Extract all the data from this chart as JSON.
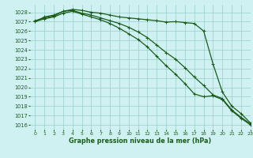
{
  "title": "Graphe pression niveau de la mer (hPa)",
  "bg_color": "#cff1f1",
  "grid_color": "#99cccc",
  "line_color": "#1a5c1a",
  "marker_color": "#1a5c1a",
  "xlim": [
    -0.5,
    23
  ],
  "ylim": [
    1015.5,
    1028.8
  ],
  "xticks": [
    0,
    1,
    2,
    3,
    4,
    5,
    6,
    7,
    8,
    9,
    10,
    11,
    12,
    13,
    14,
    15,
    16,
    17,
    18,
    19,
    20,
    21,
    22,
    23
  ],
  "yticks": [
    1016,
    1017,
    1018,
    1019,
    1020,
    1021,
    1022,
    1023,
    1024,
    1025,
    1026,
    1027,
    1028
  ],
  "series": [
    {
      "y": [
        1027.0,
        1027.5,
        1027.7,
        1028.1,
        1028.3,
        1028.2,
        1028.0,
        1027.9,
        1027.7,
        1027.5,
        1027.4,
        1027.3,
        1027.2,
        1027.1,
        1026.95,
        1027.0,
        1026.9,
        1026.8,
        1026.0,
        1022.5,
        1019.5,
        1018.0,
        1017.2,
        1016.2
      ],
      "has_marker": true,
      "lw": 0.9
    },
    {
      "y": [
        1027.1,
        1027.4,
        1027.6,
        1028.1,
        1028.2,
        1027.9,
        1027.7,
        1027.4,
        1027.1,
        1026.8,
        1026.4,
        1025.9,
        1025.3,
        1024.5,
        1023.7,
        1023.0,
        1022.1,
        1021.1,
        1020.2,
        1019.2,
        1018.8,
        1017.6,
        1016.8,
        1016.1
      ],
      "has_marker": true,
      "lw": 0.9
    },
    {
      "y": [
        1027.0,
        1027.3,
        1027.5,
        1027.9,
        1028.1,
        1027.8,
        1027.5,
        1027.2,
        1026.8,
        1026.3,
        1025.7,
        1025.1,
        1024.3,
        1023.3,
        1022.3,
        1021.4,
        1020.4,
        1019.3,
        1019.0,
        1019.1,
        1018.7,
        1017.5,
        1016.7,
        1016.0
      ],
      "has_marker": true,
      "lw": 0.9
    }
  ],
  "marker_style": "+",
  "marker_size": 2.5,
  "marker_lw": 0.7,
  "title_fontsize": 5.8,
  "tick_fontsize": 4.8,
  "xlabel_fontweight": "bold"
}
